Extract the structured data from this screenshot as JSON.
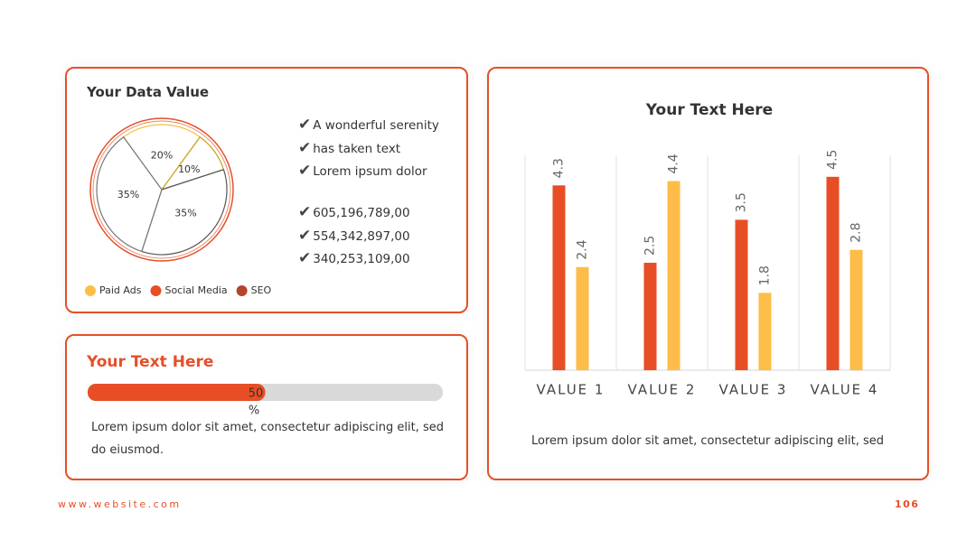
{
  "pie_card": {
    "checklist": [
      "A wonderful serenity",
      "has taken text",
      "Lorem ipsum dolor"
    ],
    "numbers": [
      "605,196,789,00",
      "554,342,897,00",
      "340,253,109,00"
    ]
  },
  "progress_card": {
    "title": "Your Text Here",
    "progress": {
      "value": 50,
      "unit": "%",
      "color": "#e84e25"
    },
    "text": "Lorem ipsum dolor sit amet, consectetur adipiscing elit, sed do eiusmod."
  },
  "bar_card": {
    "caption": "Lorem ipsum dolor sit amet, consectetur adipiscing elit, sed"
  },
  "chart_data": [
    {
      "type": "pie",
      "title": "Your Data Value",
      "values": [
        20,
        10,
        35,
        35
      ],
      "value_labels": [
        "20%",
        "10%",
        "35%",
        "35%"
      ],
      "colors": [
        "#fbbf45",
        "#c9a21c",
        "#555555",
        "#777777"
      ],
      "legend": [
        {
          "name": "Paid Ads",
          "color": "#fbbf45"
        },
        {
          "name": "Social Media",
          "color": "#e84e25"
        },
        {
          "name": "SEO",
          "color": "#b5442a"
        }
      ]
    },
    {
      "type": "bar",
      "title": "Your Text Here",
      "categories": [
        "VALUE 1",
        "VALUE 2",
        "VALUE 3",
        "VALUE 4"
      ],
      "series": [
        {
          "color": "#e84e25",
          "values": [
            4.3,
            2.5,
            3.5,
            4.5
          ]
        },
        {
          "color": "#fdbd48",
          "values": [
            2.4,
            4.4,
            1.8,
            2.8
          ]
        }
      ],
      "ylim": [
        0,
        5
      ]
    }
  ],
  "footer": {
    "website": "www.website.com",
    "page": "106"
  }
}
